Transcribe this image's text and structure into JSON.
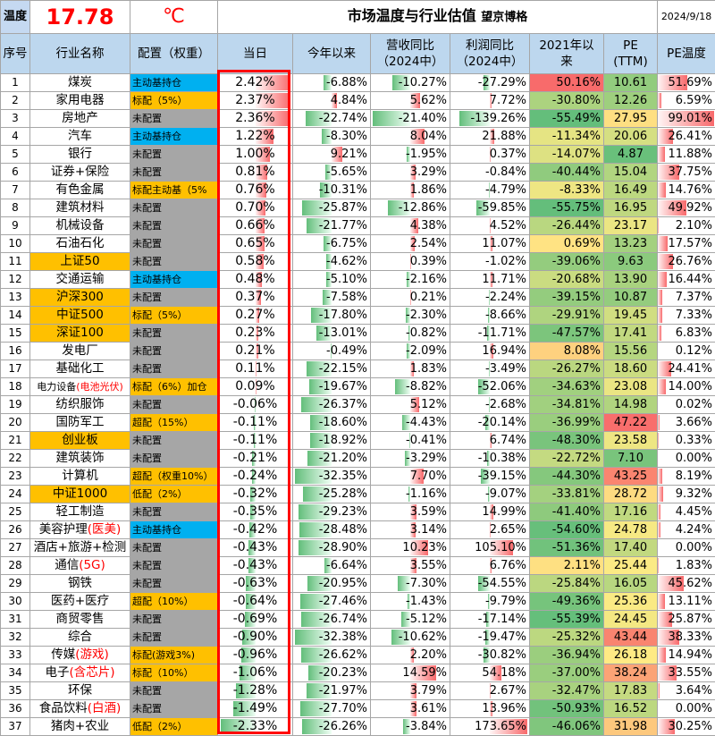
{
  "header": {
    "temp_label": "温度",
    "temp_value": "17.78",
    "temp_unit": "℃",
    "title": "市场温度与行业估值",
    "author": "望京博格",
    "date": "2024/9/18"
  },
  "columns": [
    "序号",
    "行业名称",
    "配置（权重）",
    "当日",
    "今年以来",
    "营收同比（2024中）",
    "利润同比（2024中）",
    "2021年以来",
    "PE（TTM）",
    "PE温度"
  ],
  "column_lines": [
    [
      "序号"
    ],
    [
      "行业名称"
    ],
    [
      "配置（权重）"
    ],
    [
      "当日"
    ],
    [
      "今年以来"
    ],
    [
      "营收同比",
      "（2024中）"
    ],
    [
      "利润同比",
      "（2024中）"
    ],
    [
      "2021年以",
      "来"
    ],
    [
      "PE",
      "(TTM)"
    ],
    [
      "PE温度"
    ]
  ],
  "colors": {
    "blue": "#00b0f0",
    "orange": "#ffc000",
    "gray": "#a6a6a6",
    "red": "#f8696b",
    "green": "#63be7b",
    "header_bg": "#bdd7ee"
  },
  "rows": [
    {
      "idx": "1",
      "name": "煤炭",
      "cfg": "主动基持仓",
      "cfg_style": "blue",
      "day": "2.42%",
      "ytd": "-6.88%",
      "rev": "-10.27%",
      "profit": "-27.29%",
      "since2021": "50.16%",
      "pe": "10.61",
      "pe_temp": "51.69%"
    },
    {
      "idx": "2",
      "name": "家用电器",
      "cfg": "标配（5%）",
      "cfg_style": "orange",
      "day": "2.37%",
      "ytd": "4.84%",
      "rev": "5.62%",
      "profit": "7.72%",
      "since2021": "-30.80%",
      "pe": "12.26",
      "pe_temp": "6.59%"
    },
    {
      "idx": "3",
      "name": "房地产",
      "cfg": "未配置",
      "cfg_style": "gray",
      "day": "2.36%",
      "ytd": "-22.74%",
      "rev": "-21.40%",
      "profit": "-139.26%",
      "since2021": "-55.49%",
      "pe": "27.95",
      "pe_temp": "99.01%"
    },
    {
      "idx": "4",
      "name": "汽车",
      "cfg": "主动基持仓",
      "cfg_style": "blue",
      "day": "1.22%",
      "ytd": "-8.30%",
      "rev": "8.04%",
      "profit": "21.88%",
      "since2021": "-11.34%",
      "pe": "20.06",
      "pe_temp": "26.41%"
    },
    {
      "idx": "5",
      "name": "银行",
      "cfg": "未配置",
      "cfg_style": "gray",
      "day": "1.00%",
      "ytd": "9.21%",
      "rev": "-1.95%",
      "profit": "0.37%",
      "since2021": "-14.07%",
      "pe": "4.87",
      "pe_temp": "11.88%"
    },
    {
      "idx": "6",
      "name": "证券+保险",
      "cfg": "未配置",
      "cfg_style": "gray",
      "day": "0.81%",
      "ytd": "-5.65%",
      "rev": "3.29%",
      "profit": "-0.84%",
      "since2021": "-40.44%",
      "pe": "15.04",
      "pe_temp": "37.75%"
    },
    {
      "idx": "7",
      "name": "有色金属",
      "cfg": "标配主动基（5%",
      "cfg_style": "orange",
      "day": "0.76%",
      "ytd": "-10.31%",
      "rev": "1.86%",
      "profit": "-4.79%",
      "since2021": "-8.33%",
      "pe": "16.49",
      "pe_temp": "14.76%"
    },
    {
      "idx": "8",
      "name": "建筑材料",
      "cfg": "未配置",
      "cfg_style": "gray",
      "day": "0.70%",
      "ytd": "-25.87%",
      "rev": "-12.86%",
      "profit": "-59.85%",
      "since2021": "-55.75%",
      "pe": "16.95",
      "pe_temp": "49.92%"
    },
    {
      "idx": "9",
      "name": "机械设备",
      "cfg": "未配置",
      "cfg_style": "gray",
      "day": "0.66%",
      "ytd": "-21.77%",
      "rev": "4.38%",
      "profit": "4.52%",
      "since2021": "-26.44%",
      "pe": "23.17",
      "pe_temp": "2.10%"
    },
    {
      "idx": "10",
      "name": "石油石化",
      "cfg": "未配置",
      "cfg_style": "gray",
      "day": "0.65%",
      "ytd": "-6.75%",
      "rev": "2.54%",
      "profit": "11.07%",
      "since2021": "0.69%",
      "pe": "13.23",
      "pe_temp": "17.57%"
    },
    {
      "idx": "11",
      "name": "上证50",
      "name_style": "yellow",
      "cfg": "未配置",
      "cfg_style": "gray",
      "day": "0.58%",
      "ytd": "-4.62%",
      "rev": "0.39%",
      "profit": "-1.02%",
      "since2021": "-39.06%",
      "pe": "9.63",
      "pe_temp": "26.76%"
    },
    {
      "idx": "12",
      "name": "交通运输",
      "cfg": "主动基持仓",
      "cfg_style": "blue",
      "day": "0.48%",
      "ytd": "-5.10%",
      "rev": "-2.16%",
      "profit": "11.71%",
      "since2021": "-20.68%",
      "pe": "13.90",
      "pe_temp": "16.44%"
    },
    {
      "idx": "13",
      "name": "沪深300",
      "name_style": "yellow",
      "cfg": "未配置",
      "cfg_style": "gray",
      "day": "0.37%",
      "ytd": "-7.58%",
      "rev": "0.21%",
      "profit": "-2.24%",
      "since2021": "-39.15%",
      "pe": "10.87",
      "pe_temp": "7.37%"
    },
    {
      "idx": "14",
      "name": "中证500",
      "name_style": "yellow",
      "cfg": "标配（5%）",
      "cfg_style": "orange",
      "day": "0.27%",
      "ytd": "-17.80%",
      "rev": "-2.30%",
      "profit": "-8.66%",
      "since2021": "-29.91%",
      "pe": "19.45",
      "pe_temp": "7.33%"
    },
    {
      "idx": "15",
      "name": "深证100",
      "name_style": "yellow",
      "cfg": "未配置",
      "cfg_style": "gray",
      "day": "0.23%",
      "ytd": "-13.01%",
      "rev": "-0.82%",
      "profit": "-11.71%",
      "since2021": "-47.57%",
      "pe": "17.41",
      "pe_temp": "6.83%"
    },
    {
      "idx": "16",
      "name": "发电厂",
      "cfg": "未配置",
      "cfg_style": "gray",
      "day": "0.21%",
      "ytd": "-0.49%",
      "rev": "-2.09%",
      "profit": "16.94%",
      "since2021": "8.08%",
      "pe": "15.56",
      "pe_temp": "0.12%"
    },
    {
      "idx": "17",
      "name": "基础化工",
      "cfg": "未配置",
      "cfg_style": "gray",
      "day": "0.11%",
      "ytd": "-22.15%",
      "rev": "1.83%",
      "profit": "-3.49%",
      "since2021": "-26.27%",
      "pe": "18.60",
      "pe_temp": "24.41%"
    },
    {
      "idx": "18",
      "name": "电力设备",
      "name_hl": "(电池光伏)",
      "name_small": true,
      "cfg": "标配（6%）加仓",
      "cfg_style": "orange",
      "day": "0.09%",
      "ytd": "-19.67%",
      "rev": "-8.82%",
      "profit": "-52.06%",
      "since2021": "-34.63%",
      "pe": "23.08",
      "pe_temp": "14.00%"
    },
    {
      "idx": "19",
      "name": "纺织服饰",
      "cfg": "未配置",
      "cfg_style": "gray",
      "day": "-0.06%",
      "ytd": "-26.37%",
      "rev": "5.12%",
      "profit": "-2.68%",
      "since2021": "-34.81%",
      "pe": "14.98",
      "pe_temp": "0.02%"
    },
    {
      "idx": "20",
      "name": "国防军工",
      "cfg": "超配（15%）",
      "cfg_style": "orange",
      "day": "-0.11%",
      "ytd": "-18.60%",
      "rev": "-4.43%",
      "profit": "-20.14%",
      "since2021": "-36.99%",
      "pe": "47.22",
      "pe_temp": "3.66%"
    },
    {
      "idx": "21",
      "name": "创业板",
      "name_style": "yellow",
      "cfg": "未配置",
      "cfg_style": "gray",
      "day": "-0.11%",
      "ytd": "-18.92%",
      "rev": "-0.41%",
      "profit": "6.74%",
      "since2021": "-48.30%",
      "pe": "23.58",
      "pe_temp": "0.33%"
    },
    {
      "idx": "22",
      "name": "建筑装饰",
      "cfg": "未配置",
      "cfg_style": "gray",
      "day": "-0.21%",
      "ytd": "-21.20%",
      "rev": "-3.29%",
      "profit": "-10.38%",
      "since2021": "-22.72%",
      "pe": "7.10",
      "pe_temp": "0.00%"
    },
    {
      "idx": "23",
      "name": "计算机",
      "cfg": "超配（权重10%）",
      "cfg_style": "orange",
      "day": "-0.24%",
      "ytd": "-32.35%",
      "rev": "7.70%",
      "profit": "-39.15%",
      "since2021": "-44.30%",
      "pe": "43.25",
      "pe_temp": "8.19%"
    },
    {
      "idx": "24",
      "name": "中证1000",
      "name_style": "yellow",
      "cfg": "低配（2%）",
      "cfg_style": "orange",
      "day": "-0.32%",
      "ytd": "-25.28%",
      "rev": "-1.16%",
      "profit": "-9.07%",
      "since2021": "-33.81%",
      "pe": "28.72",
      "pe_temp": "9.32%"
    },
    {
      "idx": "25",
      "name": "轻工制造",
      "cfg": "未配置",
      "cfg_style": "gray",
      "day": "-0.35%",
      "ytd": "-29.23%",
      "rev": "3.59%",
      "profit": "14.99%",
      "since2021": "-41.40%",
      "pe": "17.16",
      "pe_temp": "4.45%"
    },
    {
      "idx": "26",
      "name": "美容护理",
      "name_hl": "(医美)",
      "cfg": "主动基持仓",
      "cfg_style": "blue",
      "day": "-0.42%",
      "ytd": "-28.48%",
      "rev": "3.14%",
      "profit": "2.65%",
      "since2021": "-54.60%",
      "pe": "24.78",
      "pe_temp": "4.24%"
    },
    {
      "idx": "27",
      "name": "酒店+旅游+检测",
      "cfg": "未配置",
      "cfg_style": "gray",
      "day": "-0.43%",
      "ytd": "-28.90%",
      "rev": "10.23%",
      "profit": "105.10%",
      "since2021": "-51.36%",
      "pe": "17.40",
      "pe_temp": "0.00%"
    },
    {
      "idx": "28",
      "name": "通信",
      "name_hl": "(5G)",
      "cfg": "未配置",
      "cfg_style": "gray",
      "day": "-0.43%",
      "ytd": "-6.64%",
      "rev": "3.55%",
      "profit": "6.76%",
      "since2021": "2.11%",
      "pe": "25.44",
      "pe_temp": "1.83%"
    },
    {
      "idx": "29",
      "name": "钢铁",
      "cfg": "未配置",
      "cfg_style": "gray",
      "day": "-0.63%",
      "ytd": "-20.95%",
      "rev": "-7.30%",
      "profit": "-54.55%",
      "since2021": "-25.84%",
      "pe": "16.05",
      "pe_temp": "45.62%"
    },
    {
      "idx": "30",
      "name": "医药+医疗",
      "cfg": "超配（10%）",
      "cfg_style": "orange",
      "day": "-0.64%",
      "ytd": "-27.46%",
      "rev": "-1.43%",
      "profit": "-9.79%",
      "since2021": "-49.36%",
      "pe": "25.36",
      "pe_temp": "13.11%"
    },
    {
      "idx": "31",
      "name": "商贸零售",
      "cfg": "未配置",
      "cfg_style": "gray",
      "day": "-0.69%",
      "ytd": "-26.74%",
      "rev": "-5.12%",
      "profit": "-17.14%",
      "since2021": "-55.39%",
      "pe": "24.45",
      "pe_temp": "25.87%"
    },
    {
      "idx": "32",
      "name": "综合",
      "cfg": "未配置",
      "cfg_style": "gray",
      "day": "-0.90%",
      "ytd": "-32.38%",
      "rev": "-10.62%",
      "profit": "-19.47%",
      "since2021": "-25.32%",
      "pe": "43.44",
      "pe_temp": "38.33%"
    },
    {
      "idx": "33",
      "name": "传媒",
      "name_hl": "(游戏)",
      "cfg": "标配(游戏3%)",
      "cfg_style": "orange",
      "day": "-0.96%",
      "ytd": "-26.62%",
      "rev": "2.20%",
      "profit": "-30.82%",
      "since2021": "-36.94%",
      "pe": "26.18",
      "pe_temp": "14.94%"
    },
    {
      "idx": "34",
      "name": "电子",
      "name_hl": "(含芯片)",
      "cfg": "标配（10%）",
      "cfg_style": "orange",
      "day": "-1.06%",
      "ytd": "-20.23%",
      "rev": "14.59%",
      "profit": "54.18%",
      "since2021": "-37.00%",
      "pe": "38.24",
      "pe_temp": "33.55%"
    },
    {
      "idx": "35",
      "name": "环保",
      "cfg": "未配置",
      "cfg_style": "gray",
      "day": "-1.28%",
      "ytd": "-21.97%",
      "rev": "3.79%",
      "profit": "2.67%",
      "since2021": "-32.47%",
      "pe": "17.83",
      "pe_temp": "3.64%"
    },
    {
      "idx": "36",
      "name": "食品饮料",
      "name_hl": "(白酒)",
      "cfg": "未配置",
      "cfg_style": "gray",
      "day": "-1.49%",
      "ytd": "-27.70%",
      "rev": "3.61%",
      "profit": "13.96%",
      "since2021": "-50.93%",
      "pe": "16.52",
      "pe_temp": "0.00%"
    },
    {
      "idx": "37",
      "name": "猪肉+农业",
      "cfg": "低配（2%）",
      "cfg_style": "orange",
      "day": "-2.33%",
      "ytd": "-26.26%",
      "rev": "-3.84%",
      "profit": "173.65%",
      "since2021": "-46.06%",
      "pe": "31.98",
      "pe_temp": "30.25%"
    }
  ]
}
